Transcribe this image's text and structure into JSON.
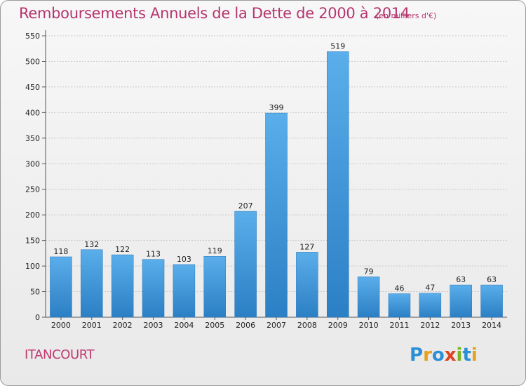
{
  "title": "Remboursements Annuels de la Dette de 2000 à 2014",
  "subtitle": "(en milliers d'€)",
  "location": "ITANCOURT",
  "logo": {
    "letters": [
      {
        "ch": "P",
        "color": "#2a8fd6"
      },
      {
        "ch": "r",
        "color": "#e8a21a"
      },
      {
        "ch": "o",
        "color": "#2a8fd6"
      },
      {
        "ch": "x",
        "color": "#e0411f"
      },
      {
        "ch": "i",
        "color": "#7ab51d"
      },
      {
        "ch": "t",
        "color": "#2a8fd6"
      },
      {
        "ch": "i",
        "color": "#e8a21a"
      }
    ]
  },
  "chart_data": {
    "type": "bar",
    "title": "Remboursements Annuels de la Dette de 2000 à 2014",
    "xlabel": "",
    "ylabel": "",
    "categories": [
      "2000",
      "2001",
      "2002",
      "2003",
      "2004",
      "2005",
      "2006",
      "2007",
      "2008",
      "2009",
      "2010",
      "2011",
      "2012",
      "2013",
      "2014"
    ],
    "values": [
      118,
      132,
      122,
      113,
      103,
      119,
      207,
      399,
      127,
      519,
      79,
      46,
      47,
      63,
      63
    ],
    "ylim": [
      0,
      550
    ],
    "yticks": [
      0,
      50,
      100,
      150,
      200,
      250,
      300,
      350,
      400,
      450,
      500,
      550
    ],
    "grid": true,
    "bar_color": "#3a96dc"
  }
}
